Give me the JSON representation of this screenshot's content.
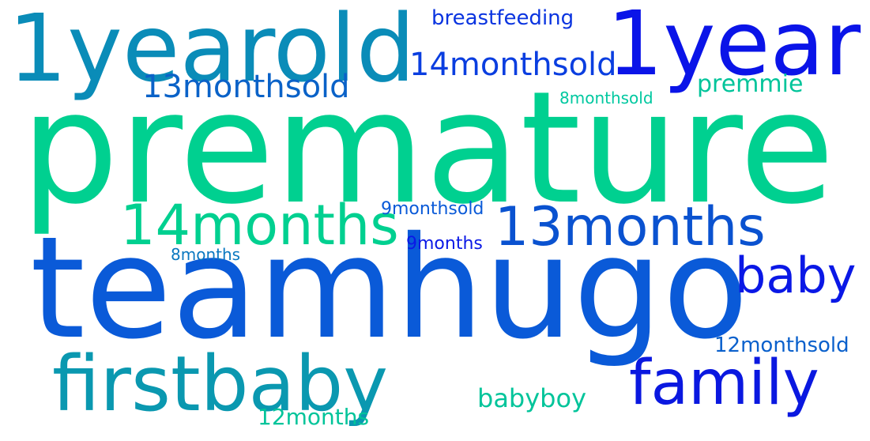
{
  "words": [
    {
      "text": "premature",
      "color": "#00d090"
    },
    {
      "text": "teamhugo",
      "color": "#0a5ad8"
    },
    {
      "text": "1yearold",
      "color": "#0a8cb8"
    },
    {
      "text": "1year",
      "color": "#0a14e8"
    },
    {
      "text": "firstbaby",
      "color": "#0a98b0"
    },
    {
      "text": "14months",
      "color": "#00d090"
    },
    {
      "text": "13months",
      "color": "#0a52d0"
    },
    {
      "text": "family",
      "color": "#0a18e0"
    },
    {
      "text": "baby",
      "color": "#0a18e6"
    },
    {
      "text": "14monthsold",
      "color": "#0a3ee0"
    },
    {
      "text": "13monthsold",
      "color": "#0a62c8"
    },
    {
      "text": "breastfeeding",
      "color": "#0a34e0"
    },
    {
      "text": "premmie",
      "color": "#00c49a"
    },
    {
      "text": "8monthsold",
      "color": "#00c8a0"
    },
    {
      "text": "babyboy",
      "color": "#00c49a"
    },
    {
      "text": "9monthsold",
      "color": "#0a5ad8"
    },
    {
      "text": "9months",
      "color": "#0a18e6"
    },
    {
      "text": "8months",
      "color": "#0a78c0"
    },
    {
      "text": "12monthsold",
      "color": "#0a60cc"
    },
    {
      "text": "12months",
      "color": "#00c49a"
    }
  ]
}
